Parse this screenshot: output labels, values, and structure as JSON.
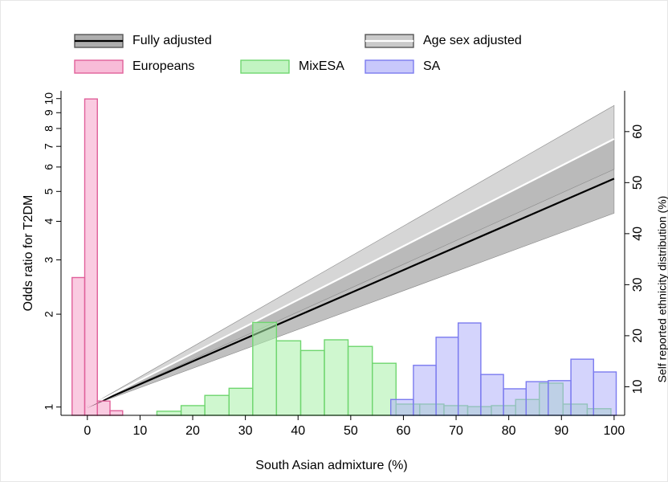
{
  "chart_data": {
    "type": "combo",
    "xlabel": "South Asian admixture (%)",
    "ylabel": "Odds ratio for T2DM",
    "y2label": "Self reported ethnicity distribution (%)",
    "xlim": [
      -5,
      102
    ],
    "xticks": [
      0,
      10,
      20,
      30,
      40,
      50,
      60,
      70,
      80,
      90,
      100
    ],
    "ylim": [
      0.94,
      10.6
    ],
    "ylog": true,
    "yticks": [
      1,
      2,
      3,
      4,
      5,
      6,
      7,
      8,
      9,
      10
    ],
    "y2lim": [
      4.4,
      68
    ],
    "y2ticks": [
      10,
      20,
      30,
      40,
      50,
      60
    ],
    "lines": [
      {
        "name": "Fully adjusted",
        "color": "#000000",
        "band_color": "#8c8c8c",
        "x": [
          0,
          100
        ],
        "values": [
          1,
          5.5
        ],
        "lower": [
          1,
          4.25
        ],
        "upper": [
          1,
          7.4
        ]
      },
      {
        "name": "Age sex adjusted",
        "color": "#ffffff",
        "band_color": "#b4b4b4",
        "x": [
          0,
          100
        ],
        "values": [
          1,
          7.4
        ],
        "lower": [
          1,
          5.9
        ],
        "upper": [
          1,
          9.5
        ]
      }
    ],
    "histograms": [
      {
        "name": "Europeans",
        "color": "#f5a0c8",
        "edge_color": "#e0609a",
        "axis": "y2",
        "bins": [
          -2.9,
          -0.5,
          1.9,
          4.3,
          6.7
        ],
        "values": [
          31.4,
          66.4,
          7.2,
          5.3
        ]
      },
      {
        "name": "MixESA",
        "color": "#a8f0a8",
        "edge_color": "#6fd66f",
        "axis": "y2",
        "bins": [
          13.2,
          17.8,
          22.3,
          26.9,
          31.4,
          35.9,
          40.5,
          45.0,
          49.5,
          54.1,
          58.6,
          63.1,
          67.7,
          72.2,
          76.7,
          81.3,
          85.8,
          90.3,
          94.9,
          99.4
        ],
        "values": [
          5.2,
          6.3,
          8.3,
          9.7,
          22.6,
          19.0,
          17.1,
          19.2,
          17.9,
          14.6,
          6.6,
          6.6,
          6.3,
          6.1,
          6.3,
          7.5,
          10.7,
          6.6,
          5.7
        ]
      },
      {
        "name": "SA",
        "color": "#b0b0fa",
        "edge_color": "#7b7bef",
        "axis": "y2",
        "bins": [
          57.6,
          61.9,
          66.2,
          70.4,
          74.7,
          79.0,
          83.3,
          87.5,
          91.8,
          96.1,
          100.4
        ],
        "values": [
          7.5,
          14.2,
          19.7,
          22.5,
          12.4,
          9.6,
          11.0,
          11.2,
          15.4,
          12.9
        ]
      }
    ]
  }
}
